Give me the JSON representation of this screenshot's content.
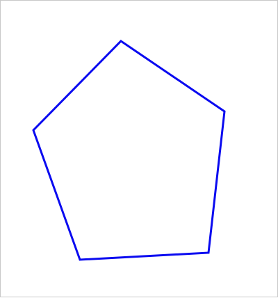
{
  "diagram": {
    "shape": "pentagon",
    "sides": 5,
    "filled": false
  },
  "colors": {
    "stroke": "#0a0af0",
    "background": "#ffffff",
    "border": "#c8c8c8"
  }
}
